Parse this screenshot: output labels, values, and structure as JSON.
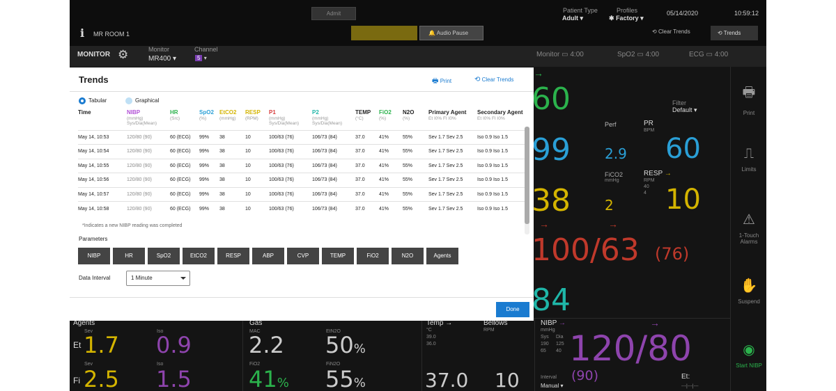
{
  "header": {
    "admit_label": "Admit",
    "patient_type_label": "Patient Type",
    "patient_type_value": "Adult",
    "profiles_label": "Profiles",
    "profiles_value": "Factory",
    "date": "05/14/2020",
    "time": "10:59:12",
    "room": "MR ROOM 1",
    "audio_pause_label": "Audio Pause",
    "clear_trends_label": "Clear Trends",
    "trends_label": "Trends",
    "info_icon": "i"
  },
  "subbar": {
    "monitor_label": "MONITOR",
    "monitor_sub_label": "Monitor",
    "monitor_model": "MR400",
    "channel_label": "Channel",
    "channel_value": "5",
    "batteries": [
      {
        "label": "Monitor",
        "time": "4:00"
      },
      {
        "label": "SpO2",
        "time": "4:00"
      },
      {
        "label": "ECG",
        "time": "4:00"
      }
    ]
  },
  "vitals": {
    "hr_value": "60",
    "spo2_value": "99",
    "etco2_value": "38",
    "abp_value": "100/63",
    "abp_mean": "(76)",
    "p2_value": "84",
    "filter_label": "Filter",
    "filter_value": "Default",
    "perf_label": "Perf",
    "perf_value": "2.9",
    "pr_label": "PR",
    "pr_unit": "BPM",
    "pr_value": "60",
    "fico2_label": "FiCO2",
    "fico2_unit": "mmHg",
    "fico2_value": "2",
    "resp_label": "RESP",
    "resp_unit": "RPM",
    "resp_limit_high": "40",
    "resp_limit_low": "4",
    "resp_value": "10"
  },
  "bottom": {
    "agents_label": "Agents",
    "et_label": "Et",
    "fi_label": "Fi",
    "sev_label": "Sev",
    "iso_label": "Iso",
    "et_sev": "1.7",
    "et_iso": "0.9",
    "fi_sev": "2.5",
    "fi_iso": "1.5",
    "gas_label": "Gas",
    "mac_label": "MAC",
    "mac_value": "2.2",
    "etn2o_label": "EtN2O",
    "etn2o_value": "50",
    "fio2_label": "FiO2",
    "fio2_value": "41",
    "fin2o_label": "FiN2O",
    "fin2o_value": "55",
    "percent": "%",
    "temp_label": "Temp",
    "temp_unit": "°C",
    "temp_hi": "39.0",
    "temp_lo": "36.0",
    "temp_value": "37.0",
    "bellows_label": "Bellows",
    "bellows_unit": "RPM",
    "bellows_value": "10",
    "nibp_label": "NIBP",
    "nibp_unit": "mmHg",
    "nibp_sys_label": "Sys",
    "nibp_dia_label": "Dia",
    "nibp_sys_hi": "190",
    "nibp_sys_lo": "65",
    "nibp_dia_hi": "125",
    "nibp_dia_lo": "40",
    "nibp_value": "120/80",
    "nibp_mean": "(90)",
    "interval_label": "Interval",
    "interval_value": "Manual",
    "et_right_label": "Et:",
    "et_right_value": "---|---|---"
  },
  "sidebar": {
    "print_label": "Print",
    "limits_label": "Limits",
    "touch_alarms_label": "1-Touch Alarms",
    "suspend_label": "Suspend",
    "start_nibp_label": "Start NIBP"
  },
  "modal": {
    "title": "Trends",
    "print_label": "Print",
    "clear_trends_label": "Clear Trends",
    "tabular_label": "Tabular",
    "graphical_label": "Graphical",
    "columns": [
      {
        "name": "Time",
        "unit": "",
        "color": "#222222"
      },
      {
        "name": "NIBP",
        "unit": "(mmHg) Sys/Dia(Mean)",
        "color": "#b14fd6"
      },
      {
        "name": "HR",
        "unit": "(Src)",
        "color": "#2bb24c"
      },
      {
        "name": "SpO2",
        "unit": "(%)",
        "color": "#2a9fd6"
      },
      {
        "name": "EtCO2",
        "unit": "(mmHg)",
        "color": "#d4b400"
      },
      {
        "name": "RESP",
        "unit": "(RPM)",
        "color": "#d4b400"
      },
      {
        "name": "P1",
        "unit": "(mmHg) Sys/Dia(Mean)",
        "color": "#d63a3a"
      },
      {
        "name": "P2",
        "unit": "(mmHg) Sys/Dia(Mean)",
        "color": "#1fb6a8"
      },
      {
        "name": "TEMP",
        "unit": "(°C)",
        "color": "#222222"
      },
      {
        "name": "FiO2",
        "unit": "(%)",
        "color": "#2bb24c"
      },
      {
        "name": "N2O",
        "unit": "(%)",
        "color": "#222222"
      },
      {
        "name": "Primary Agent",
        "unit": "Et I0% FI I0%",
        "color": "#222222"
      },
      {
        "name": "Secondary Agent",
        "unit": "Et I0% FI I0%",
        "color": "#222222"
      }
    ],
    "rows": [
      [
        "May 14, 10:53",
        "120/80 (90)",
        "60 (ECG)",
        "99%",
        "38",
        "10",
        "100/63 (76)",
        "106/73 (84)",
        "37.0",
        "41%",
        "55%",
        "Sev 1.7 Sev 2.5",
        "Iso 0.9 Iso 1.5"
      ],
      [
        "May 14, 10:54",
        "120/80 (90)",
        "60 (ECG)",
        "99%",
        "38",
        "10",
        "100/63 (76)",
        "106/73 (84)",
        "37.0",
        "41%",
        "55%",
        "Sev 1.7 Sev 2.5",
        "Iso 0.9 Iso 1.5"
      ],
      [
        "May 14, 10:55",
        "120/80 (90)",
        "60 (ECG)",
        "99%",
        "38",
        "10",
        "100/63 (76)",
        "106/73 (84)",
        "37.0",
        "41%",
        "55%",
        "Sev 1.7 Sev 2.5",
        "Iso 0.9 Iso 1.5"
      ],
      [
        "May 14, 10:56",
        "120/80 (90)",
        "60 (ECG)",
        "99%",
        "38",
        "10",
        "100/63 (76)",
        "106/73 (84)",
        "37.0",
        "41%",
        "55%",
        "Sev 1.7 Sev 2.5",
        "Iso 0.9 Iso 1.5"
      ],
      [
        "May 14, 10:57",
        "120/80 (90)",
        "60 (ECG)",
        "99%",
        "38",
        "10",
        "100/63 (76)",
        "106/73 (84)",
        "37.0",
        "41%",
        "55%",
        "Sev 1.7 Sev 2.5",
        "Iso 0.9 Iso 1.5"
      ],
      [
        "May 14, 10:58",
        "120/80 (90)",
        "60 (ECG)",
        "99%",
        "38",
        "10",
        "100/63 (76)",
        "106/73 (84)",
        "37.0",
        "41%",
        "55%",
        "Sev 1.7 Sev 2.5",
        "Iso 0.9 Iso 1.5"
      ]
    ],
    "note": "*Indicates a new NIBP reading was completed",
    "parameters_label": "Parameters",
    "parameters": [
      "NIBP",
      "HR",
      "SpO2",
      "EtCO2",
      "RESP",
      "ABP",
      "CVP",
      "TEMP",
      "FiO2",
      "N2O",
      "Agents"
    ],
    "data_interval_label": "Data Interval",
    "data_interval_value": "1 Minute",
    "done_label": "Done"
  },
  "colors": {
    "hr": "#2bb24c",
    "spo2": "#2a9fd6",
    "etco2": "#d4b400",
    "abp": "#c0392b",
    "p2": "#1fb6a8",
    "agent_sev": "#d4b400",
    "agent_iso": "#8e44ad",
    "nibp": "#8e44ad",
    "fio2": "#2bb24c",
    "link": "#1a7bd0"
  }
}
